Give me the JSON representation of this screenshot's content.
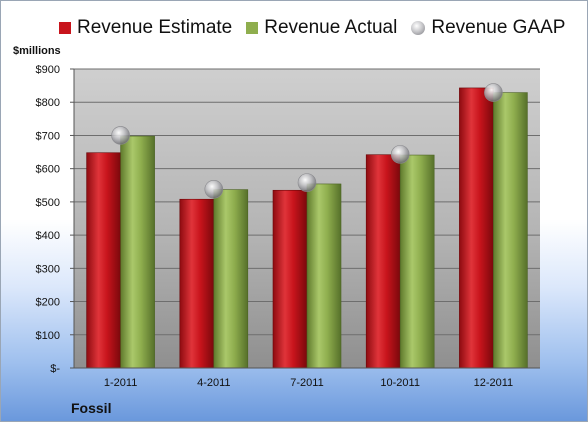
{
  "legend": {
    "estimate": "Revenue Estimate",
    "actual": "Revenue Actual",
    "gaap": "Revenue GAAP"
  },
  "unit_label": "$millions",
  "company": "Fossil",
  "colors": {
    "estimate": "#c8141c",
    "actual": "#8fae4e",
    "gaap": "#b5b5b8"
  },
  "chart_data": {
    "type": "bar",
    "categories": [
      "1-2011",
      "4-2011",
      "7-2011",
      "10-2011",
      "12-2011"
    ],
    "series": [
      {
        "name": "Revenue Estimate",
        "values": [
          648,
          508,
          535,
          642,
          843
        ]
      },
      {
        "name": "Revenue Actual",
        "values": [
          698,
          537,
          554,
          641,
          829
        ]
      },
      {
        "name": "Revenue GAAP",
        "values": [
          700,
          538,
          558,
          643,
          829
        ]
      }
    ],
    "ylabel": "$millions",
    "ylim": [
      0,
      900
    ],
    "yticks": [
      0,
      100,
      200,
      300,
      400,
      500,
      600,
      700,
      800,
      900
    ],
    "ytick_labels": [
      "$-",
      "$100",
      "$200",
      "$300",
      "$400",
      "$500",
      "$600",
      "$700",
      "$800",
      "$900"
    ],
    "grid": true,
    "legend_position": "top"
  }
}
